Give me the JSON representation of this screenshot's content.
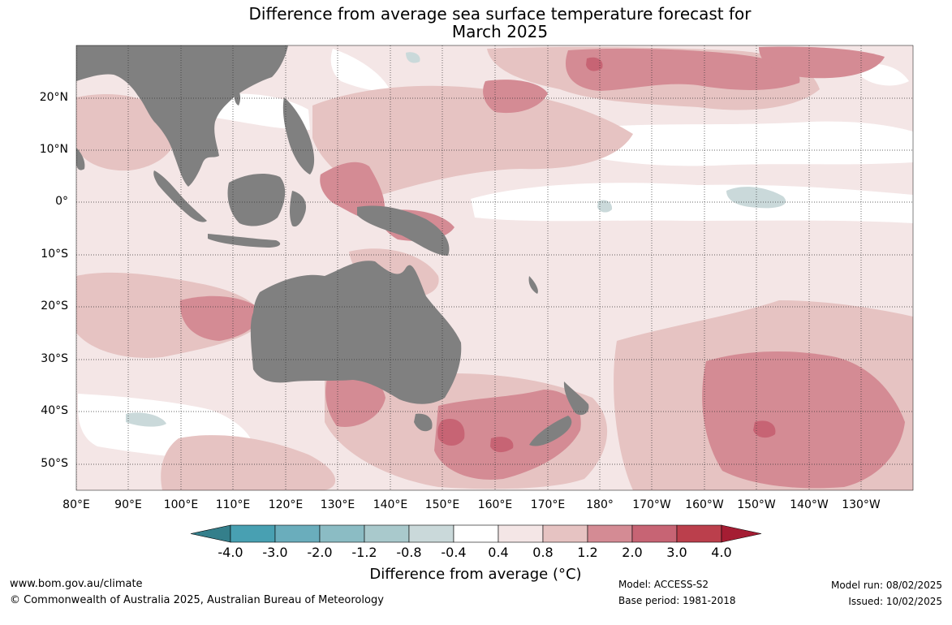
{
  "title_line1": "Difference from average sea surface temperature forecast for",
  "title_line2": "March 2025",
  "map": {
    "lat_labels": [
      "20°N",
      "10°N",
      "0°",
      "10°S",
      "20°S",
      "30°S",
      "40°S",
      "50°S"
    ],
    "lon_labels": [
      "80°E",
      "90°E",
      "100°E",
      "110°E",
      "120°E",
      "130°E",
      "140°E",
      "150°E",
      "160°E",
      "170°E",
      "180°",
      "170°W",
      "160°W",
      "150°W",
      "140°W",
      "130°W"
    ],
    "land_color": "#808080",
    "ocean_base_color": "#f4e6e6"
  },
  "colorbar": {
    "labels": [
      "-4.0",
      "-3.0",
      "-2.0",
      "-1.2",
      "-0.8",
      "-0.4",
      "0.4",
      "0.8",
      "1.2",
      "2.0",
      "3.0",
      "4.0"
    ],
    "colors": [
      "#347f8b",
      "#48a0b2",
      "#6aadbc",
      "#8bbcc4",
      "#a9c9cc",
      "#cad9da",
      "#ffffff",
      "#f4e6e6",
      "#e6c3c2",
      "#d48b94",
      "#c76474",
      "#bb3f4c",
      "#a51d33"
    ],
    "title": "Difference from average (°C)"
  },
  "footer": {
    "website": "www.bom.gov.au/climate",
    "copyright": "© Commonwealth of Australia 2025, Australian Bureau of Meteorology",
    "model": "Model: ACCESS-S2",
    "base_period": "Base period: 1981-2018",
    "model_run": "Model run: 08/02/2025",
    "issued": "Issued: 10/02/2025"
  }
}
